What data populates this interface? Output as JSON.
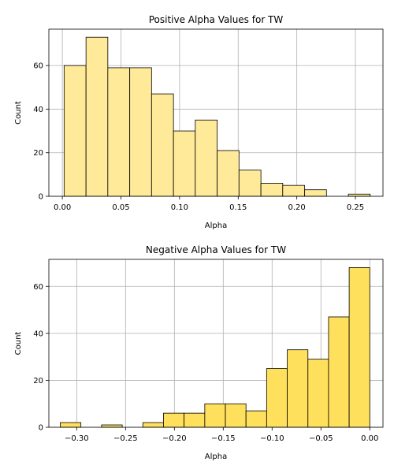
{
  "chart_data": [
    {
      "type": "bar",
      "title": "Positive Alpha Values for TW",
      "xlabel": "Alpha",
      "ylabel": "Count",
      "xlim": [
        -0.0115,
        0.2735
      ],
      "ylim": [
        0,
        76.7
      ],
      "xticks": [
        0.0,
        0.05,
        0.1,
        0.15,
        0.2,
        0.25
      ],
      "xtick_labels": [
        "0.00",
        "0.05",
        "0.10",
        "0.15",
        "0.20",
        "0.25"
      ],
      "yticks": [
        0,
        20,
        40,
        60
      ],
      "ytick_labels": [
        "0",
        "20",
        "40",
        "60"
      ],
      "grid": true,
      "color": "#ffea99",
      "bins": [
        {
          "x0": 0.0015,
          "x1": 0.0202,
          "count": 60
        },
        {
          "x0": 0.0202,
          "x1": 0.0388,
          "count": 73
        },
        {
          "x0": 0.0388,
          "x1": 0.0575,
          "count": 59
        },
        {
          "x0": 0.0575,
          "x1": 0.0761,
          "count": 59
        },
        {
          "x0": 0.0761,
          "x1": 0.0948,
          "count": 47
        },
        {
          "x0": 0.0948,
          "x1": 0.1134,
          "count": 30
        },
        {
          "x0": 0.1134,
          "x1": 0.1321,
          "count": 35
        },
        {
          "x0": 0.1321,
          "x1": 0.1507,
          "count": 21
        },
        {
          "x0": 0.1507,
          "x1": 0.1694,
          "count": 12
        },
        {
          "x0": 0.1694,
          "x1": 0.188,
          "count": 6
        },
        {
          "x0": 0.188,
          "x1": 0.2067,
          "count": 5
        },
        {
          "x0": 0.2067,
          "x1": 0.2253,
          "count": 3
        },
        {
          "x0": 0.2253,
          "x1": 0.244,
          "count": 0
        },
        {
          "x0": 0.244,
          "x1": 0.2626,
          "count": 1
        }
      ]
    },
    {
      "type": "bar",
      "title": "Negative Alpha Values for TW",
      "xlabel": "Alpha",
      "ylabel": "Count",
      "xlim": [
        -0.3285,
        0.0135
      ],
      "ylim": [
        0,
        71.5
      ],
      "xticks": [
        -0.3,
        -0.25,
        -0.2,
        -0.15,
        -0.1,
        -0.05,
        0.0
      ],
      "xtick_labels": [
        "−0.30",
        "−0.25",
        "−0.20",
        "−0.15",
        "−0.10",
        "−0.05",
        "0.00"
      ],
      "yticks": [
        0,
        20,
        40,
        60
      ],
      "ytick_labels": [
        "0",
        "20",
        "40",
        "60"
      ],
      "grid": true,
      "color": "#ffe05c",
      "bins": [
        {
          "x0": -0.3168,
          "x1": -0.2957,
          "count": 2
        },
        {
          "x0": -0.2957,
          "x1": -0.2746,
          "count": 0
        },
        {
          "x0": -0.2746,
          "x1": -0.2534,
          "count": 1
        },
        {
          "x0": -0.2534,
          "x1": -0.2323,
          "count": 0
        },
        {
          "x0": -0.2323,
          "x1": -0.2112,
          "count": 2
        },
        {
          "x0": -0.2112,
          "x1": -0.1901,
          "count": 6
        },
        {
          "x0": -0.1901,
          "x1": -0.1689,
          "count": 6
        },
        {
          "x0": -0.1689,
          "x1": -0.1478,
          "count": 10
        },
        {
          "x0": -0.1478,
          "x1": -0.1267,
          "count": 10
        },
        {
          "x0": -0.1267,
          "x1": -0.1056,
          "count": 7
        },
        {
          "x0": -0.1056,
          "x1": -0.0845,
          "count": 25
        },
        {
          "x0": -0.0845,
          "x1": -0.0633,
          "count": 33
        },
        {
          "x0": -0.0633,
          "x1": -0.0422,
          "count": 29
        },
        {
          "x0": -0.0422,
          "x1": -0.0211,
          "count": 47
        },
        {
          "x0": -0.0211,
          "x1": 0.0,
          "count": 68
        }
      ]
    }
  ]
}
